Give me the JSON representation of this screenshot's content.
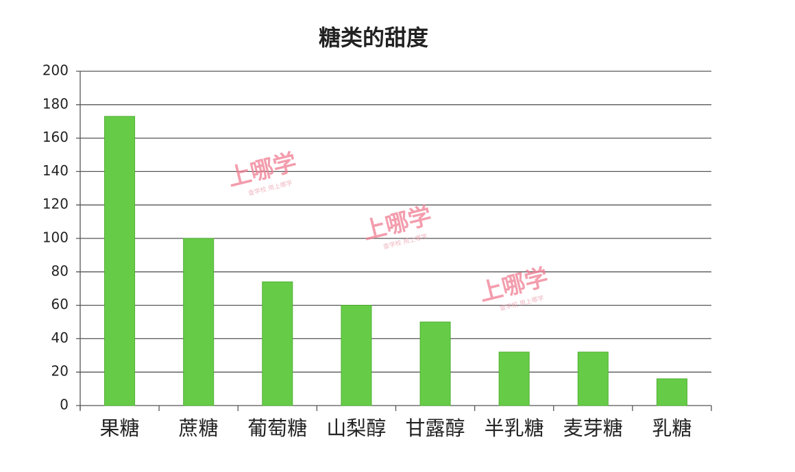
{
  "chart_data": {
    "type": "bar",
    "title": "糖类的甜度",
    "categories": [
      "果糖",
      "蔗糖",
      "葡萄糖",
      "山梨醇",
      "甘露醇",
      "半乳糖",
      "麦芽糖",
      "乳糖"
    ],
    "values": [
      173,
      100,
      74,
      60,
      50,
      32,
      32,
      16
    ],
    "color": "#66cc47",
    "ylim": [
      0,
      200
    ],
    "yticks": [
      0,
      20,
      40,
      60,
      80,
      100,
      120,
      140,
      160,
      180,
      200
    ],
    "grid": true,
    "watermark": "上哪学",
    "watermark_sub": "查学校 用上哪学"
  }
}
